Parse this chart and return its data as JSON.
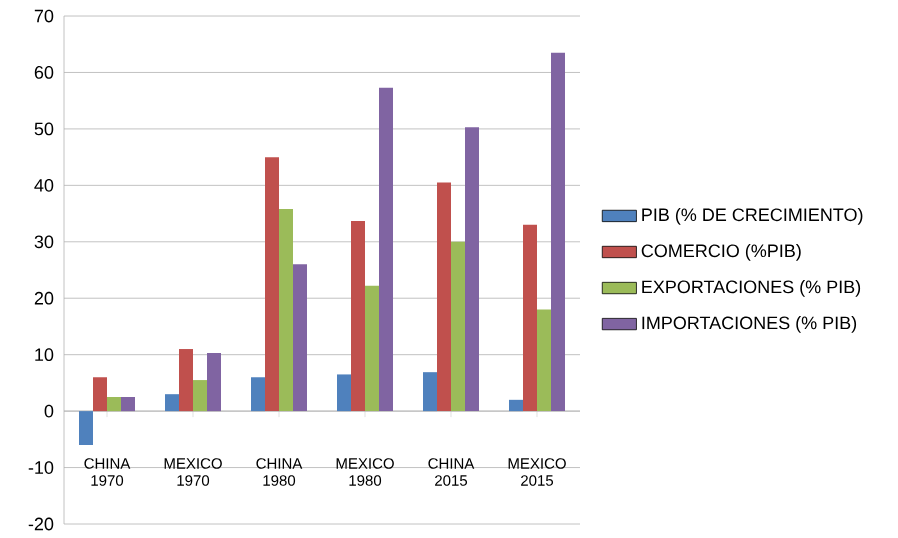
{
  "chart_data": {
    "type": "bar",
    "categories": [
      "CHINA 1970",
      "MEXICO 1970",
      "CHINA 1980",
      "MEXICO 1980",
      "CHINA 2015",
      "MEXICO 2015"
    ],
    "series": [
      {
        "name": "PIB (% DE CRECIMIENTO)",
        "color": "#4f81bd",
        "values": [
          -6,
          3,
          6,
          6.5,
          6.9,
          2
        ]
      },
      {
        "name": "COMERCIO (%PIB)",
        "color": "#c0504d",
        "values": [
          6,
          11,
          45,
          33.7,
          40.5,
          33
        ]
      },
      {
        "name": "EXPORTACIONES (% PIB)",
        "color": "#9bbb59",
        "values": [
          2.5,
          5.5,
          35.8,
          22.2,
          30,
          18
        ]
      },
      {
        "name": "IMPORTACIONES (% PIB)",
        "color": "#8064a2",
        "values": [
          2.5,
          10.3,
          26,
          57.3,
          50.3,
          63.5
        ]
      }
    ],
    "ylim": [
      -20,
      70
    ],
    "yticks": [
      -20,
      -10,
      0,
      10,
      20,
      30,
      40,
      50,
      60,
      70
    ],
    "grid": "y",
    "legend": "right"
  }
}
